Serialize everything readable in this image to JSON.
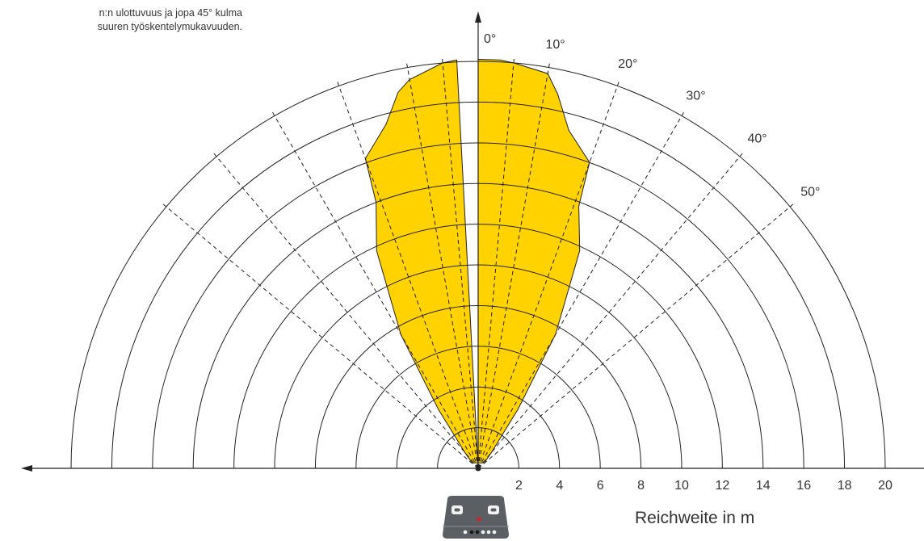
{
  "caption": {
    "line1": "n:n ulottuvuus ja jopa 45° kulma",
    "line2": "suuren työskentelymukavuuden."
  },
  "colors": {
    "fill": "#FFD200",
    "line": "#222222",
    "device_body": "#5b5e63",
    "device_led": "#d2232a"
  },
  "chart_data": {
    "type": "polar-area",
    "xlabel": "Reichweite in m",
    "x_ticks": [
      "2",
      "4",
      "6",
      "8",
      "10",
      "12",
      "14",
      "16",
      "18",
      "20"
    ],
    "radial_max": 20,
    "ring_step": 2,
    "angle_labels": [
      "0°",
      "10°",
      "20°",
      "30°",
      "40°",
      "50°"
    ],
    "guide_angles_deg": [
      -50,
      -40,
      -30,
      -20,
      -10,
      -5,
      5,
      10,
      20,
      30,
      40,
      50
    ],
    "detection_zone": [
      {
        "angle_deg": 0,
        "range_m": 20.1
      },
      {
        "angle_deg": 3,
        "range_m": 20.1
      },
      {
        "angle_deg": 5,
        "range_m": 20.0
      },
      {
        "angle_deg": 10,
        "range_m": 19.7
      },
      {
        "angle_deg": 12,
        "range_m": 18.8
      },
      {
        "angle_deg": 15,
        "range_m": 17.2
      },
      {
        "angle_deg": 20,
        "range_m": 16.0
      },
      {
        "angle_deg": 21,
        "range_m": 13.8
      },
      {
        "angle_deg": 25,
        "range_m": 11.8
      },
      {
        "angle_deg": 30,
        "range_m": 7.6
      },
      {
        "angle_deg": 34,
        "range_m": 3.5
      },
      {
        "angle_deg": 40,
        "range_m": 1.0
      },
      {
        "angle_deg": 48,
        "range_m": 0.4
      },
      {
        "angle_deg": -48,
        "range_m": 0.4
      },
      {
        "angle_deg": -40,
        "range_m": 1.0
      },
      {
        "angle_deg": -34,
        "range_m": 3.5
      },
      {
        "angle_deg": -30,
        "range_m": 7.6
      },
      {
        "angle_deg": -25,
        "range_m": 11.8
      },
      {
        "angle_deg": -21,
        "range_m": 14.0
      },
      {
        "angle_deg": -20,
        "range_m": 16.2
      },
      {
        "angle_deg": -15,
        "range_m": 17.5
      },
      {
        "angle_deg": -12,
        "range_m": 18.9
      },
      {
        "angle_deg": -10,
        "range_m": 19.4
      },
      {
        "angle_deg": -5,
        "range_m": 20.0
      },
      {
        "angle_deg": -3,
        "range_m": 20.1
      }
    ]
  }
}
